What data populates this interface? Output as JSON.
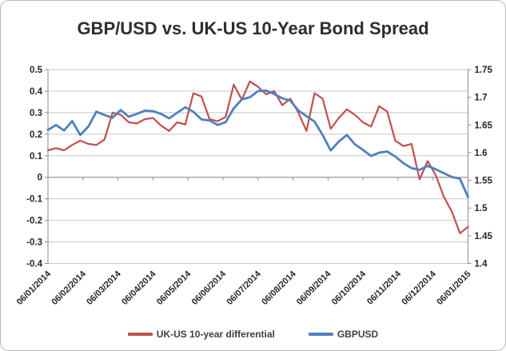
{
  "chart_data": {
    "type": "line",
    "title": "GBP/USD vs. UK-US 10-Year Bond Spread",
    "grid": "horizontal",
    "legend_position": "bottom",
    "x_axis": {
      "labels": [
        "06/01/2014",
        "06/02/2014",
        "06/03/2014",
        "06/04/2014",
        "06/05/2014",
        "06/06/2014",
        "06/07/2014",
        "06/08/2014",
        "06/09/2014",
        "06/10/2014",
        "06/11/2014",
        "06/12/2014",
        "06/01/2015"
      ],
      "label_rotation_deg": 45
    },
    "left_axis": {
      "min": -0.4,
      "max": 0.5,
      "step": 0.1,
      "labels": [
        "0.5",
        "0.4",
        "0.3",
        "0.2",
        "0.1",
        "0",
        "-0.1",
        "-0.2",
        "-0.3",
        "-0.4"
      ]
    },
    "right_axis": {
      "min": 1.4,
      "max": 1.75,
      "step": 0.05,
      "labels": [
        "1.75",
        "1.7",
        "1.65",
        "1.6",
        "1.55",
        "1.5",
        "1.45",
        "1.4"
      ]
    },
    "series": [
      {
        "name": "UK-US 10-year differential",
        "axis": "left",
        "color": "#C0504D",
        "values": [
          0.125,
          0.135,
          0.125,
          0.15,
          0.17,
          0.155,
          0.15,
          0.175,
          0.3,
          0.29,
          0.255,
          0.25,
          0.27,
          0.275,
          0.24,
          0.215,
          0.255,
          0.245,
          0.39,
          0.375,
          0.27,
          0.26,
          0.28,
          0.43,
          0.36,
          0.445,
          0.42,
          0.385,
          0.4,
          0.335,
          0.365,
          0.3,
          0.215,
          0.39,
          0.365,
          0.225,
          0.275,
          0.315,
          0.29,
          0.255,
          0.235,
          0.33,
          0.305,
          0.17,
          0.145,
          0.155,
          -0.01,
          0.075,
          0.01,
          -0.09,
          -0.16,
          -0.26,
          -0.23
        ]
      },
      {
        "name": "GBPUSD",
        "axis": "right",
        "color": "#4F81BD",
        "values": [
          1.641,
          1.65,
          1.64,
          1.657,
          1.632,
          1.647,
          1.674,
          1.668,
          1.663,
          1.677,
          1.665,
          1.67,
          1.676,
          1.675,
          1.67,
          1.662,
          1.672,
          1.682,
          1.674,
          1.66,
          1.658,
          1.65,
          1.655,
          1.68,
          1.696,
          1.7,
          1.711,
          1.712,
          1.706,
          1.698,
          1.694,
          1.676,
          1.666,
          1.656,
          1.632,
          1.604,
          1.62,
          1.632,
          1.615,
          1.605,
          1.594,
          1.6,
          1.602,
          1.593,
          1.581,
          1.572,
          1.569,
          1.576,
          1.57,
          1.563,
          1.556,
          1.553,
          1.52
        ]
      }
    ],
    "colors": {
      "gridline": "#C7C7C7",
      "axis_line": "#8C8C8C",
      "tick_label": "#262626"
    }
  }
}
